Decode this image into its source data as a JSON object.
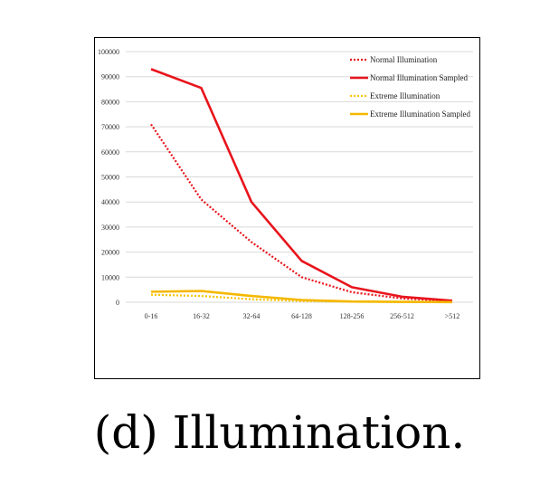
{
  "caption": "(d) Illumination.",
  "chart_data": {
    "type": "line",
    "categories": [
      "0-16",
      "16-32",
      "32-64",
      "64-128",
      "128-256",
      "256-512",
      ">512"
    ],
    "ylim": [
      0,
      100000
    ],
    "yticks": [
      0,
      10000,
      20000,
      30000,
      40000,
      50000,
      60000,
      70000,
      80000,
      90000,
      100000
    ],
    "grid": true,
    "legend_position": "top-right",
    "series": [
      {
        "name": "Normal Illumination",
        "color": "#e8141c",
        "style": "dotted",
        "values": [
          71000,
          41000,
          24000,
          10000,
          4000,
          1500,
          500
        ]
      },
      {
        "name": "Normal Illumination Sampled",
        "color": "#e8141c",
        "style": "solid",
        "values": [
          93000,
          85500,
          40000,
          16500,
          6000,
          2200,
          600
        ]
      },
      {
        "name": "Extreme Illumination",
        "color": "#f5c400",
        "style": "dotted",
        "values": [
          3000,
          2500,
          1200,
          500,
          200,
          100,
          50
        ]
      },
      {
        "name": "Extreme Illumination Sampled",
        "color": "#f5b800",
        "style": "solid",
        "values": [
          4200,
          4500,
          2500,
          900,
          300,
          150,
          80
        ]
      }
    ]
  }
}
